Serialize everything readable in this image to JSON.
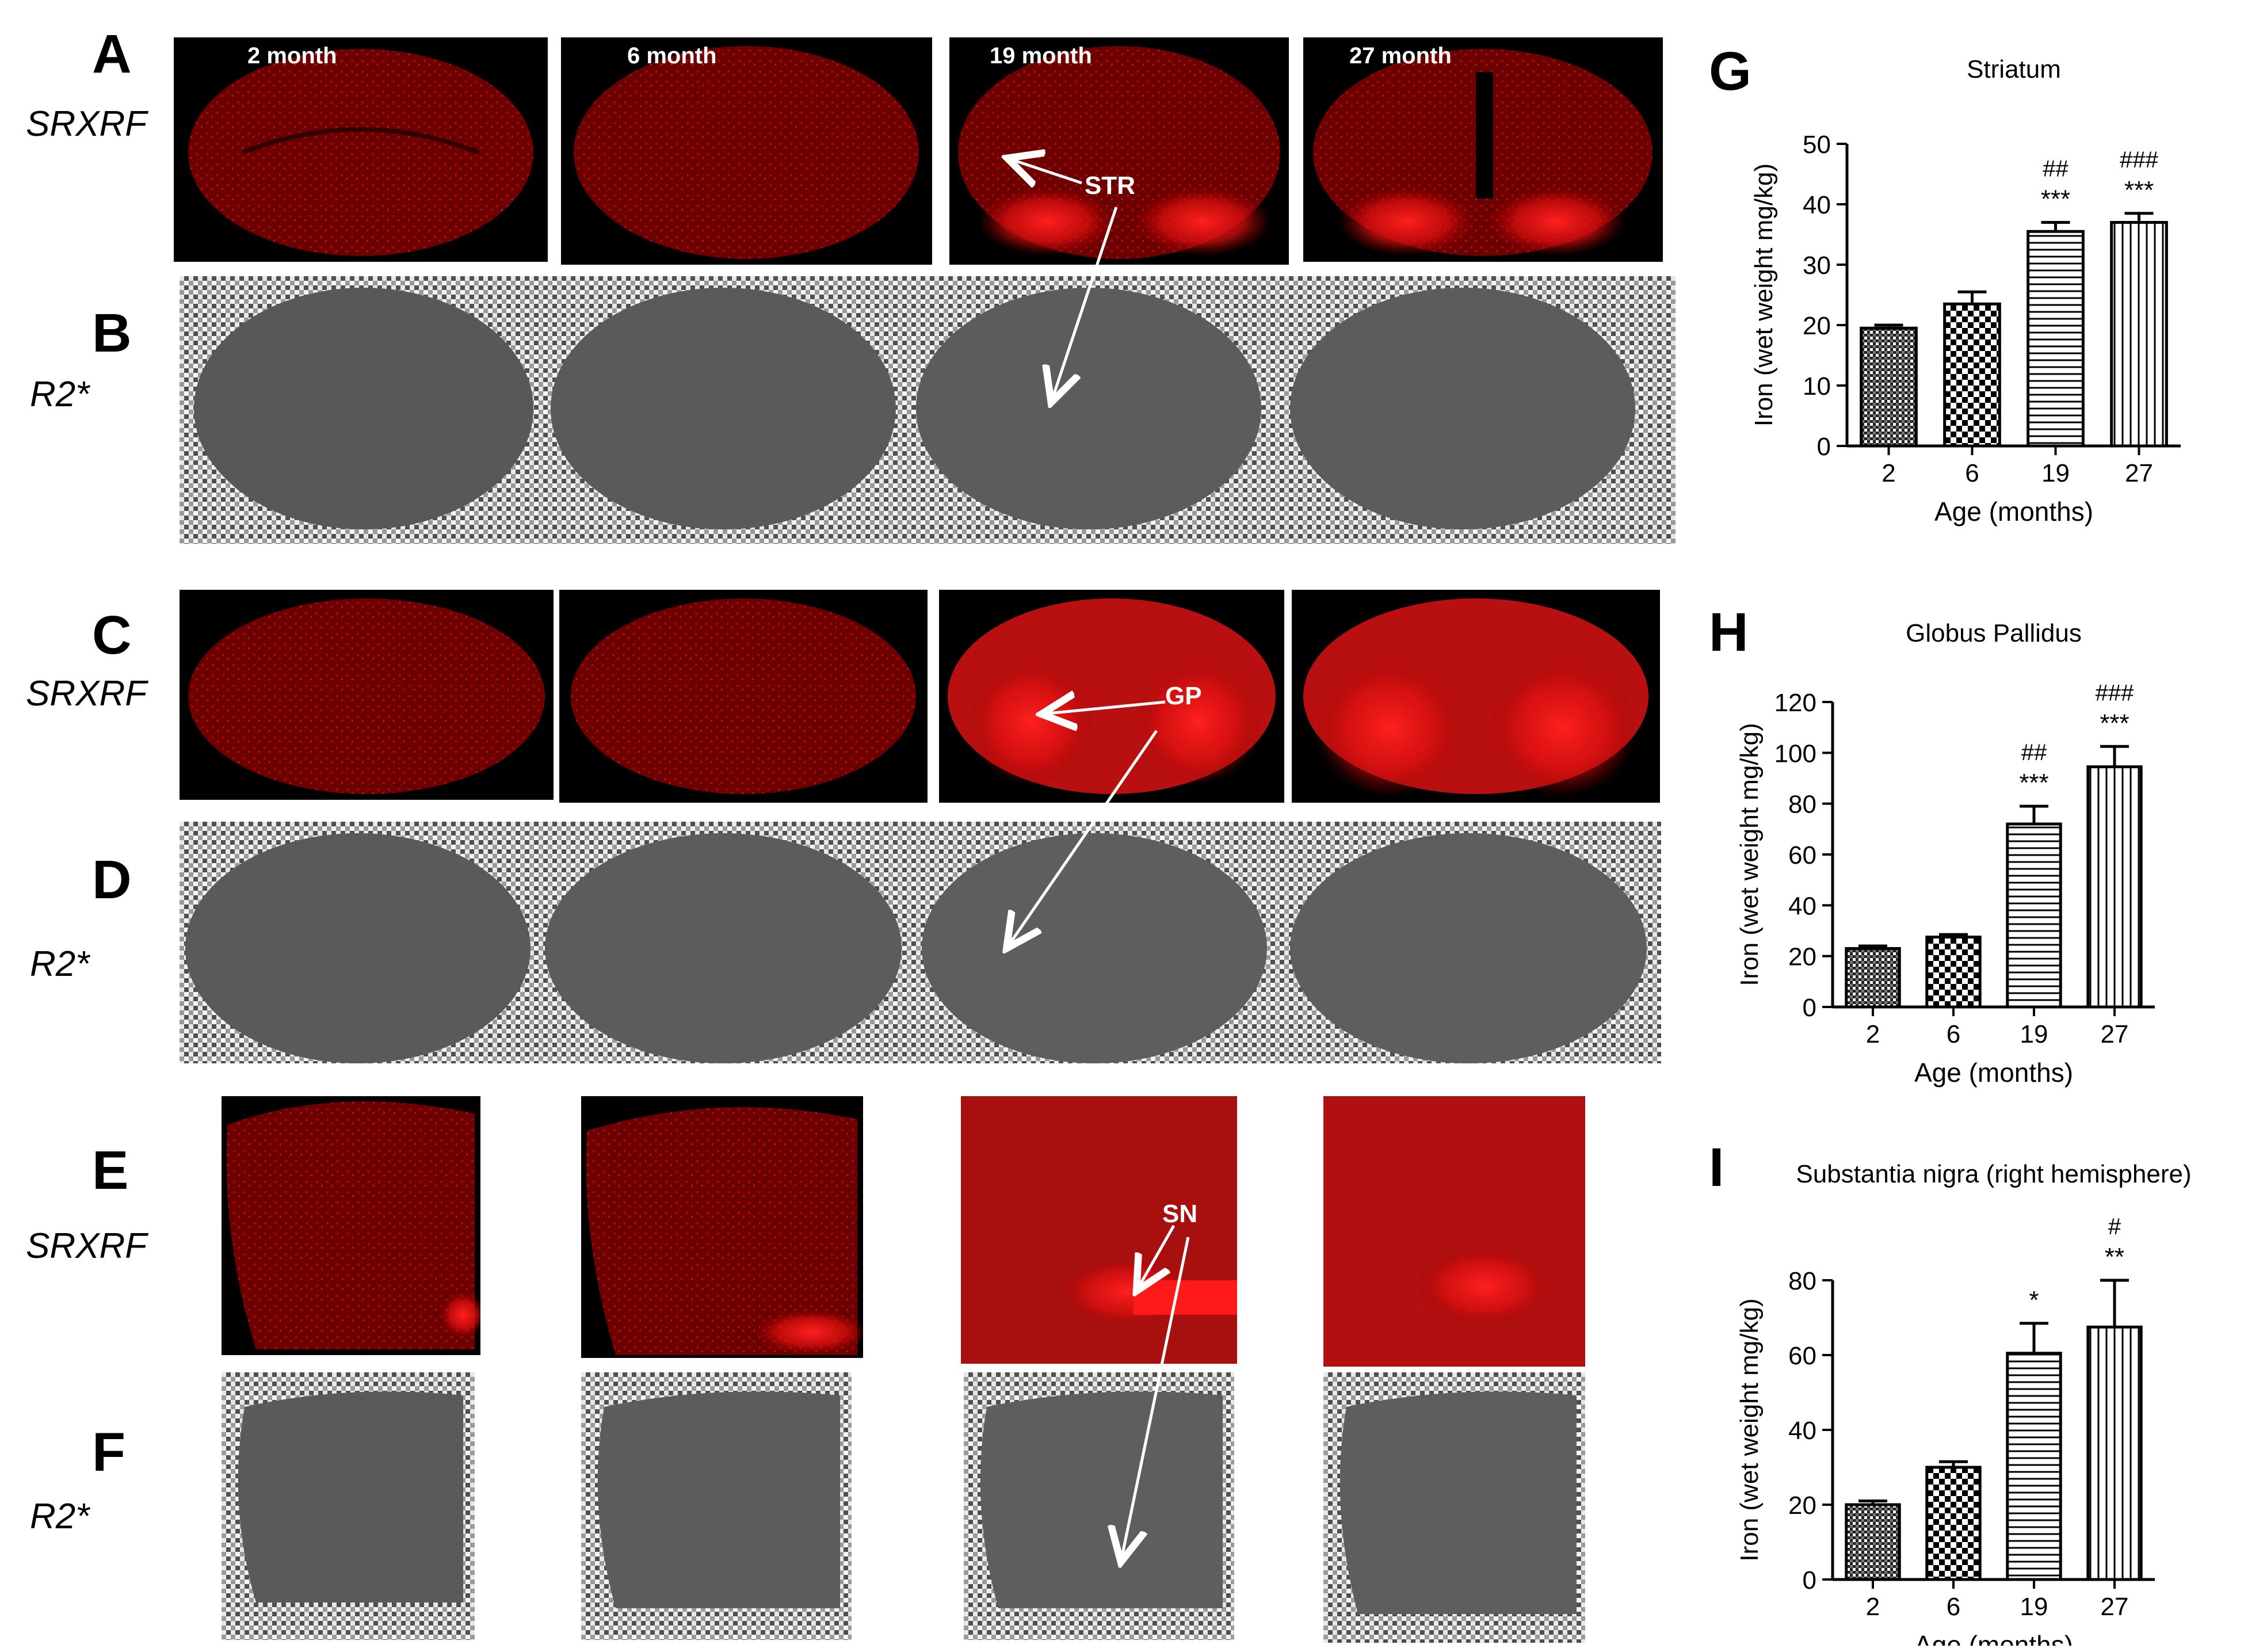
{
  "panel_letters": [
    "A",
    "B",
    "C",
    "D",
    "E",
    "F",
    "G",
    "H",
    "I"
  ],
  "row_labels": {
    "a": "SRXRF",
    "b": "R2*",
    "c": "SRXRF",
    "d": "R2*",
    "e": "SRXRF",
    "f": "R2*"
  },
  "age_labels": [
    "2 month",
    "6 month",
    "19 month",
    "27 month"
  ],
  "arrow_labels": {
    "str": "STR",
    "gp": "GP",
    "sn": "SN"
  },
  "colors": {
    "srxrf_red": "#ff1a1a",
    "r2_gray": "#5a5a5a",
    "background_black": "#000000"
  },
  "chart_data": [
    {
      "type": "bar",
      "panel": "G",
      "title": "Striatum",
      "xlabel": "Age (months)",
      "ylabel": "Iron (wet weight mg/kg)",
      "categories": [
        "2",
        "6",
        "19",
        "27"
      ],
      "values": [
        19.5,
        23.5,
        35.5,
        37
      ],
      "errors": [
        0.5,
        2,
        1.5,
        1.5
      ],
      "patterns": [
        "dense-check",
        "check",
        "hlines",
        "vlines"
      ],
      "ylim": [
        0,
        50
      ],
      "yticks": [
        0,
        10,
        20,
        30,
        40,
        50
      ],
      "annotations": [
        {
          "category": "19",
          "stars": "***",
          "hashes": "##"
        },
        {
          "category": "27",
          "stars": "***",
          "hashes": "###"
        }
      ]
    },
    {
      "type": "bar",
      "panel": "H",
      "title": "Globus Pallidus",
      "xlabel": "Age (months)",
      "ylabel": "Iron (wet weight mg/kg)",
      "categories": [
        "2",
        "6",
        "19",
        "27"
      ],
      "values": [
        23,
        27.5,
        72,
        94.5
      ],
      "errors": [
        1,
        1,
        7,
        8
      ],
      "patterns": [
        "dense-check",
        "check",
        "hlines",
        "vlines"
      ],
      "ylim": [
        0,
        120
      ],
      "yticks": [
        0,
        20,
        40,
        60,
        80,
        100,
        120
      ],
      "annotations": [
        {
          "category": "19",
          "stars": "***",
          "hashes": "##"
        },
        {
          "category": "27",
          "stars": "***",
          "hashes": "###"
        }
      ]
    },
    {
      "type": "bar",
      "panel": "I",
      "title": "Substantia nigra (right hemisphere)",
      "xlabel": "Age (months)",
      "ylabel": "Iron (wet weight mg/kg)",
      "categories": [
        "2",
        "6",
        "19",
        "27"
      ],
      "values": [
        20,
        30,
        60.5,
        67.5
      ],
      "errors": [
        1,
        1.5,
        8,
        12.5
      ],
      "patterns": [
        "dense-check",
        "check",
        "hlines",
        "vlines"
      ],
      "ylim": [
        0,
        80
      ],
      "yticks": [
        0,
        20,
        40,
        60,
        80
      ],
      "annotations": [
        {
          "category": "19",
          "stars": "*",
          "hashes": ""
        },
        {
          "category": "27",
          "stars": "**",
          "hashes": "#"
        }
      ]
    }
  ]
}
